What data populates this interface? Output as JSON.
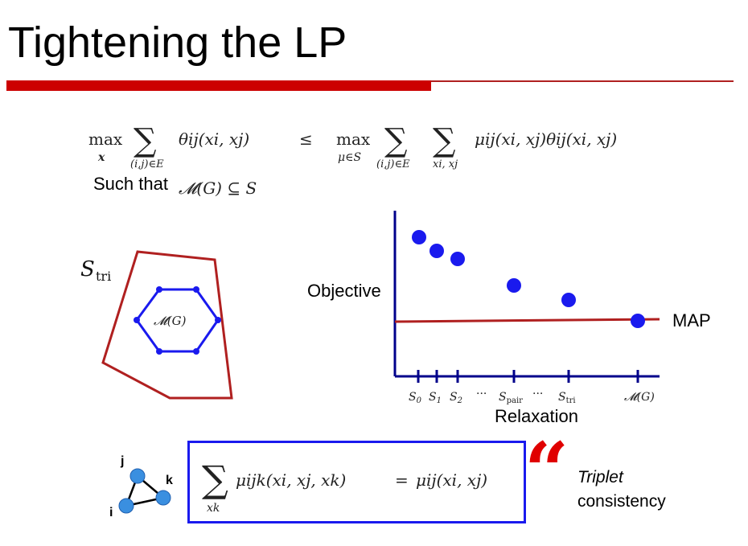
{
  "slide": {
    "title": "Tightening the LP",
    "such_that": "Such that",
    "constraint": "𝓜(G) ⊆ S",
    "polytope_outer_label": "S",
    "polytope_outer_sub": "tri",
    "polytope_inner_label": "𝓜(G)",
    "objective_label": "Objective",
    "map_label": "MAP",
    "relaxation_label": "Relaxation",
    "ticks": [
      "S0",
      "S1",
      "S2",
      "···",
      "Spair",
      "···",
      "Stri",
      "𝓜(G)"
    ],
    "triangle_nodes": [
      "j",
      "k",
      "i"
    ],
    "quote_mark": "“",
    "triplet_word": "Triplet",
    "consistency_word": "consistency",
    "eq_lhs": {
      "max_word": "max",
      "max_sub": "x",
      "sum_sub": "(i,j)∈E",
      "term": "θij(xi, xj)",
      "leq": "≤"
    },
    "eq_rhs": {
      "max_word": "max",
      "max_sub": "μ∈S",
      "sum1_sub": "(i,j)∈E",
      "sum2_sub": "xi, xj",
      "term": "μij(xi, xj)θij(xi, xj)"
    },
    "boxed_eq": {
      "sum_sub": "xk",
      "lhs": "μijk(xi, xj, xk)",
      "eq": "=",
      "rhs": "μij(xi, xj)"
    }
  },
  "colors": {
    "accent_red": "#cc0000",
    "line_red": "#b02020",
    "blue": "#1a1aee",
    "axis_blue": "#00008b"
  }
}
